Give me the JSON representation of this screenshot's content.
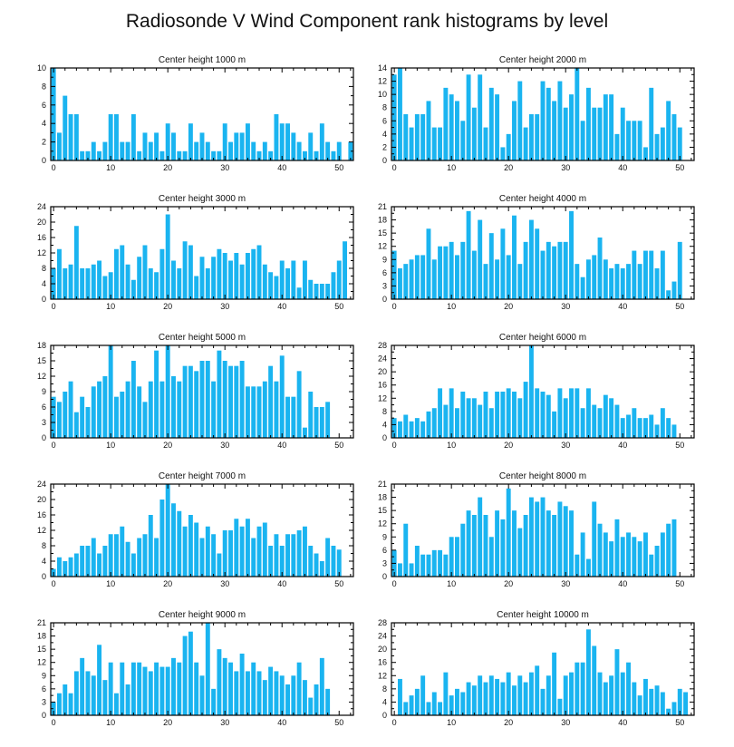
{
  "title": "Radiosonde V Wind Component rank histograms by level",
  "colors": {
    "bar": "#1AB4F0",
    "axis": "#000000",
    "background": "#ffffff"
  },
  "chart_data": [
    {
      "type": "bar",
      "title": "Center height 1000 m",
      "ylim": [
        0,
        10
      ],
      "yticks": [
        0,
        2,
        4,
        6,
        8,
        10
      ],
      "xlim": [
        -0.5,
        52.5
      ],
      "xticks": [
        0,
        10,
        20,
        30,
        40,
        50
      ],
      "values": [
        10,
        3,
        7,
        5,
        5,
        1,
        1,
        2,
        1,
        2,
        5,
        5,
        2,
        2,
        5,
        1,
        3,
        2,
        3,
        1,
        4,
        3,
        1,
        1,
        4,
        2,
        3,
        2,
        1,
        1,
        4,
        2,
        3,
        3,
        4,
        2,
        1,
        2,
        1,
        5,
        4,
        4,
        3,
        2,
        1,
        3,
        1,
        4,
        2,
        1,
        2,
        0,
        2
      ]
    },
    {
      "type": "bar",
      "title": "Center height 2000 m",
      "ylim": [
        0,
        14
      ],
      "yticks": [
        0,
        2,
        4,
        6,
        8,
        10,
        12,
        14
      ],
      "xlim": [
        -0.5,
        52.5
      ],
      "xticks": [
        0,
        10,
        20,
        30,
        40,
        50
      ],
      "values": [
        13,
        14,
        7,
        5,
        7,
        7,
        9,
        5,
        5,
        11,
        10,
        9,
        6,
        13,
        8,
        13,
        5,
        11,
        10,
        2,
        4,
        9,
        12,
        5,
        7,
        7,
        12,
        11,
        9,
        12,
        8,
        10,
        14,
        6,
        11,
        8,
        8,
        10,
        10,
        4,
        8,
        6,
        6,
        6,
        2,
        11,
        4,
        5,
        9,
        7,
        5,
        0,
        0
      ]
    },
    {
      "type": "bar",
      "title": "Center height 3000 m",
      "ylim": [
        0,
        24
      ],
      "yticks": [
        0,
        4,
        8,
        12,
        16,
        20,
        24
      ],
      "xlim": [
        -0.5,
        52.5
      ],
      "xticks": [
        0,
        10,
        20,
        30,
        40,
        50
      ],
      "values": [
        8,
        13,
        8,
        9,
        19,
        8,
        8,
        9,
        10,
        6,
        7,
        13,
        14,
        9,
        5,
        11,
        14,
        8,
        7,
        13,
        22,
        10,
        8,
        15,
        14,
        6,
        11,
        8,
        11,
        13,
        12,
        10,
        12,
        9,
        12,
        13,
        14,
        9,
        7,
        6,
        10,
        8,
        10,
        3,
        10,
        5,
        4,
        4,
        4,
        7,
        10,
        15,
        0
      ]
    },
    {
      "type": "bar",
      "title": "Center height 4000 m",
      "ylim": [
        0,
        21
      ],
      "yticks": [
        0,
        3,
        6,
        9,
        12,
        15,
        18,
        21
      ],
      "xlim": [
        -0.5,
        52.5
      ],
      "xticks": [
        0,
        10,
        20,
        30,
        40,
        50
      ],
      "values": [
        11,
        7,
        8,
        9,
        10,
        10,
        16,
        9,
        12,
        12,
        13,
        10,
        13,
        20,
        11,
        18,
        8,
        15,
        9,
        16,
        10,
        19,
        8,
        13,
        18,
        16,
        11,
        13,
        12,
        13,
        13,
        20,
        8,
        5,
        9,
        10,
        14,
        9,
        7,
        8,
        7,
        8,
        11,
        8,
        11,
        11,
        7,
        11,
        2,
        4,
        13,
        0,
        0
      ]
    },
    {
      "type": "bar",
      "title": "Center height 5000 m",
      "ylim": [
        0,
        18
      ],
      "yticks": [
        0,
        3,
        6,
        9,
        12,
        15,
        18
      ],
      "xlim": [
        -0.5,
        52.5
      ],
      "xticks": [
        0,
        10,
        20,
        30,
        40,
        50
      ],
      "values": [
        8,
        7,
        9,
        11,
        5,
        8,
        6,
        10,
        11,
        12,
        18,
        8,
        9,
        11,
        15,
        10,
        7,
        11,
        17,
        11,
        18,
        12,
        11,
        14,
        14,
        13,
        15,
        15,
        11,
        17,
        15,
        14,
        14,
        15,
        10,
        10,
        10,
        11,
        14,
        11,
        16,
        8,
        8,
        13,
        2,
        9,
        6,
        6,
        7,
        0,
        0,
        0,
        0
      ]
    },
    {
      "type": "bar",
      "title": "Center height 6000 m",
      "ylim": [
        0,
        28
      ],
      "yticks": [
        0,
        4,
        8,
        12,
        16,
        20,
        24,
        28
      ],
      "xlim": [
        -0.5,
        52.5
      ],
      "xticks": [
        0,
        10,
        20,
        30,
        40,
        50
      ],
      "values": [
        6,
        5,
        7,
        5,
        6,
        5,
        8,
        9,
        15,
        10,
        15,
        9,
        14,
        12,
        12,
        10,
        14,
        9,
        14,
        14,
        15,
        14,
        12,
        17,
        28,
        15,
        14,
        13,
        8,
        15,
        12,
        15,
        15,
        9,
        15,
        10,
        9,
        13,
        12,
        10,
        6,
        7,
        9,
        6,
        6,
        7,
        4,
        9,
        6,
        4,
        0,
        0,
        0
      ]
    },
    {
      "type": "bar",
      "title": "Center height 7000 m",
      "ylim": [
        0,
        24
      ],
      "yticks": [
        0,
        4,
        8,
        12,
        16,
        20,
        24
      ],
      "xlim": [
        -0.5,
        52.5
      ],
      "xticks": [
        0,
        10,
        20,
        30,
        40,
        50
      ],
      "values": [
        2,
        5,
        4,
        5,
        6,
        8,
        8,
        10,
        6,
        8,
        11,
        11,
        13,
        9,
        6,
        10,
        11,
        16,
        10,
        20,
        24,
        19,
        17,
        13,
        16,
        14,
        10,
        13,
        11,
        6,
        12,
        12,
        15,
        13,
        15,
        10,
        13,
        14,
        8,
        11,
        8,
        11,
        11,
        12,
        13,
        8,
        6,
        4,
        10,
        8,
        7,
        0,
        0
      ]
    },
    {
      "type": "bar",
      "title": "Center height 8000 m",
      "ylim": [
        0,
        21
      ],
      "yticks": [
        0,
        3,
        6,
        9,
        12,
        15,
        18,
        21
      ],
      "xlim": [
        -0.5,
        52.5
      ],
      "xticks": [
        0,
        10,
        20,
        30,
        40,
        50
      ],
      "values": [
        6,
        3,
        12,
        3,
        7,
        5,
        5,
        6,
        6,
        5,
        9,
        9,
        12,
        15,
        14,
        18,
        14,
        9,
        15,
        13,
        20,
        15,
        11,
        14,
        18,
        17,
        18,
        15,
        14,
        17,
        16,
        15,
        5,
        10,
        4,
        17,
        12,
        10,
        8,
        13,
        9,
        10,
        9,
        8,
        10,
        5,
        7,
        10,
        12,
        13,
        0,
        0,
        0
      ]
    },
    {
      "type": "bar",
      "title": "Center height 9000 m",
      "ylim": [
        0,
        21
      ],
      "yticks": [
        0,
        3,
        6,
        9,
        12,
        15,
        18,
        21
      ],
      "xlim": [
        -0.5,
        52.5
      ],
      "xticks": [
        0,
        10,
        20,
        30,
        40,
        50
      ],
      "values": [
        3,
        5,
        7,
        5,
        10,
        13,
        10,
        9,
        16,
        8,
        12,
        5,
        12,
        7,
        12,
        12,
        11,
        10,
        12,
        11,
        11,
        13,
        12,
        18,
        19,
        12,
        9,
        21,
        6,
        15,
        13,
        12,
        10,
        14,
        10,
        12,
        10,
        8,
        11,
        10,
        9,
        7,
        9,
        12,
        8,
        4,
        7,
        13,
        6,
        0,
        0,
        0,
        0
      ]
    },
    {
      "type": "bar",
      "title": "Center height 10000 m",
      "ylim": [
        0,
        28
      ],
      "yticks": [
        0,
        4,
        8,
        12,
        16,
        20,
        24,
        28
      ],
      "xlim": [
        -0.5,
        52.5
      ],
      "xticks": [
        0,
        10,
        20,
        30,
        40,
        50
      ],
      "values": [
        0,
        11,
        4,
        6,
        8,
        12,
        4,
        7,
        4,
        13,
        6,
        8,
        7,
        10,
        9,
        12,
        10,
        12,
        11,
        10,
        13,
        9,
        12,
        10,
        13,
        15,
        8,
        12,
        19,
        5,
        12,
        13,
        16,
        16,
        26,
        21,
        13,
        10,
        12,
        20,
        13,
        16,
        10,
        6,
        11,
        8,
        9,
        7,
        2,
        4,
        8,
        7,
        0
      ]
    }
  ]
}
